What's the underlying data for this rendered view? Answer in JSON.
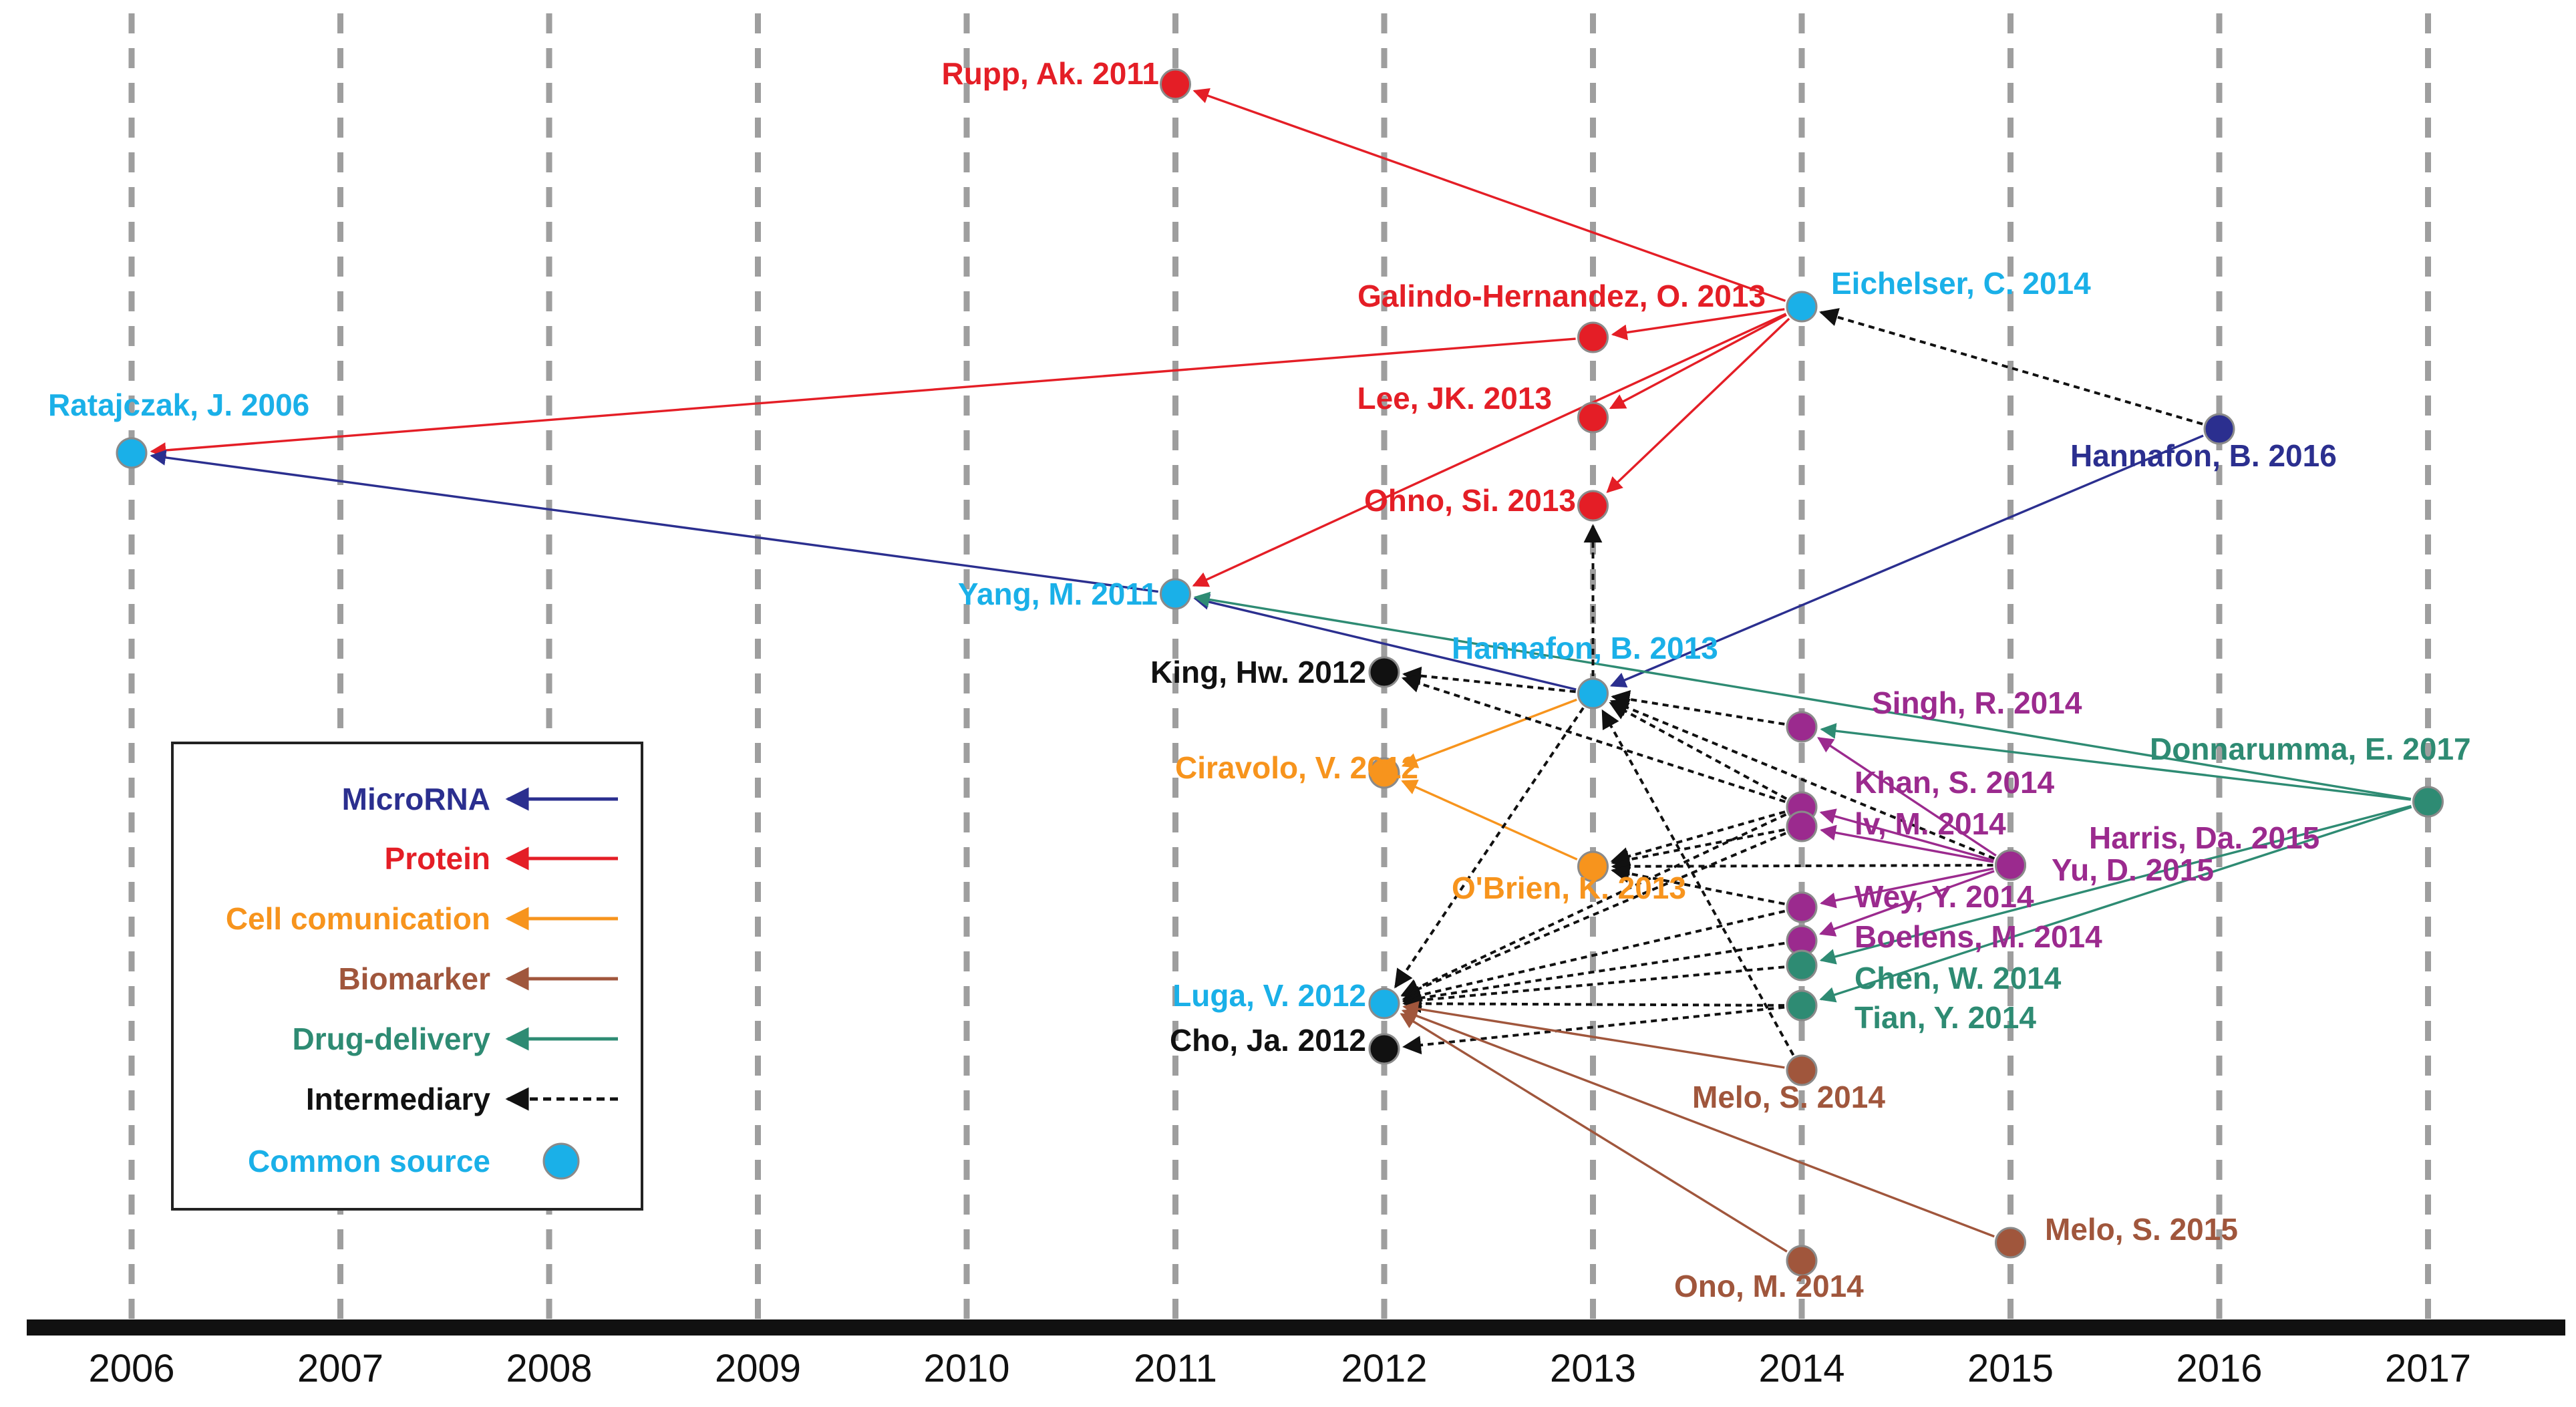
{
  "years": [
    "2006",
    "2007",
    "2008",
    "2009",
    "2010",
    "2011",
    "2012",
    "2013",
    "2014",
    "2015",
    "2016",
    "2017"
  ],
  "categories": {
    "microrna": {
      "label": "MicroRNA",
      "color": "#2b2f8f"
    },
    "protein": {
      "label": "Protein",
      "color": "#e41e26"
    },
    "cellcomm": {
      "label": "Cell comunication",
      "color": "#f7941d"
    },
    "biomarker": {
      "label": "Biomarker",
      "color": "#a0563c"
    },
    "drug": {
      "label": "Drug-delivery",
      "color": "#2e8b73"
    },
    "intermediary": {
      "label": "Intermediary",
      "color": "#111111"
    },
    "common": {
      "label": "Common source",
      "color": "#1ab0e8"
    }
  },
  "nodes": [
    {
      "id": "ratajczak",
      "label": "Ratajczak, J. 2006",
      "year": 2006,
      "cat": "common"
    },
    {
      "id": "rupp",
      "label": "Rupp, Ak. 2011",
      "year": 2011,
      "cat": "protein"
    },
    {
      "id": "yang",
      "label": "Yang, M. 2011",
      "year": 2011,
      "cat": "common"
    },
    {
      "id": "king",
      "label": "King, Hw. 2012",
      "year": 2012,
      "cat": "intermediary"
    },
    {
      "id": "ciravolo",
      "label": "Ciravolo, V. 2012",
      "year": 2012,
      "cat": "cellcomm"
    },
    {
      "id": "luga",
      "label": "Luga, V. 2012",
      "year": 2012,
      "cat": "common"
    },
    {
      "id": "cho",
      "label": "Cho, Ja. 2012",
      "year": 2012,
      "cat": "intermediary"
    },
    {
      "id": "galindo",
      "label": "Galindo-Hernandez, O. 2013",
      "year": 2013,
      "cat": "protein"
    },
    {
      "id": "lee",
      "label": "Lee, JK. 2013",
      "year": 2013,
      "cat": "protein"
    },
    {
      "id": "ohno",
      "label": "Ohno, Si. 2013",
      "year": 2013,
      "cat": "protein"
    },
    {
      "id": "hannafon13",
      "label": "Hannafon, B. 2013",
      "year": 2013,
      "cat": "common"
    },
    {
      "id": "obrien",
      "label": "O'Brien, K. 2013",
      "year": 2013,
      "cat": "cellcomm"
    },
    {
      "id": "eichelser",
      "label": "Eichelser, C. 2014",
      "year": 2014,
      "cat": "common"
    },
    {
      "id": "singh",
      "label": "Singh, R. 2014",
      "year": 2014,
      "cat": "purple"
    },
    {
      "id": "khan",
      "label": "Khan, S. 2014",
      "year": 2014,
      "cat": "purple"
    },
    {
      "id": "lv",
      "label": "lv, M. 2014",
      "year": 2014,
      "cat": "purple"
    },
    {
      "id": "wey",
      "label": "Wey, Y. 2014",
      "year": 2014,
      "cat": "purple"
    },
    {
      "id": "boelens",
      "label": "Boelens, M. 2014",
      "year": 2014,
      "cat": "purple"
    },
    {
      "id": "chen",
      "label": "Chen, W. 2014",
      "year": 2014,
      "cat": "drug"
    },
    {
      "id": "tian",
      "label": "Tian, Y. 2014",
      "year": 2014,
      "cat": "drug"
    },
    {
      "id": "melo14",
      "label": "Melo, S. 2014",
      "year": 2014,
      "cat": "biomarker"
    },
    {
      "id": "ono",
      "label": "Ono, M. 2014",
      "year": 2014,
      "cat": "biomarker"
    },
    {
      "id": "harris",
      "label": "Harris, Da. 2015",
      "year": 2015,
      "cat": "purple"
    },
    {
      "id": "yu",
      "label": "Yu, D. 2015",
      "year": 2015,
      "cat": "purple"
    },
    {
      "id": "melo15",
      "label": "Melo, S. 2015",
      "year": 2015,
      "cat": "biomarker"
    },
    {
      "id": "hannafon16",
      "label": "Hannafon, B. 2016",
      "year": 2016,
      "cat": "microrna"
    },
    {
      "id": "donnarumma",
      "label": "Donnarumma, E. 2017",
      "year": 2017,
      "cat": "drug"
    }
  ],
  "colors": {
    "purple": "#9b2a8e",
    "grid": "#9e9e9e",
    "axis": "#111111"
  }
}
